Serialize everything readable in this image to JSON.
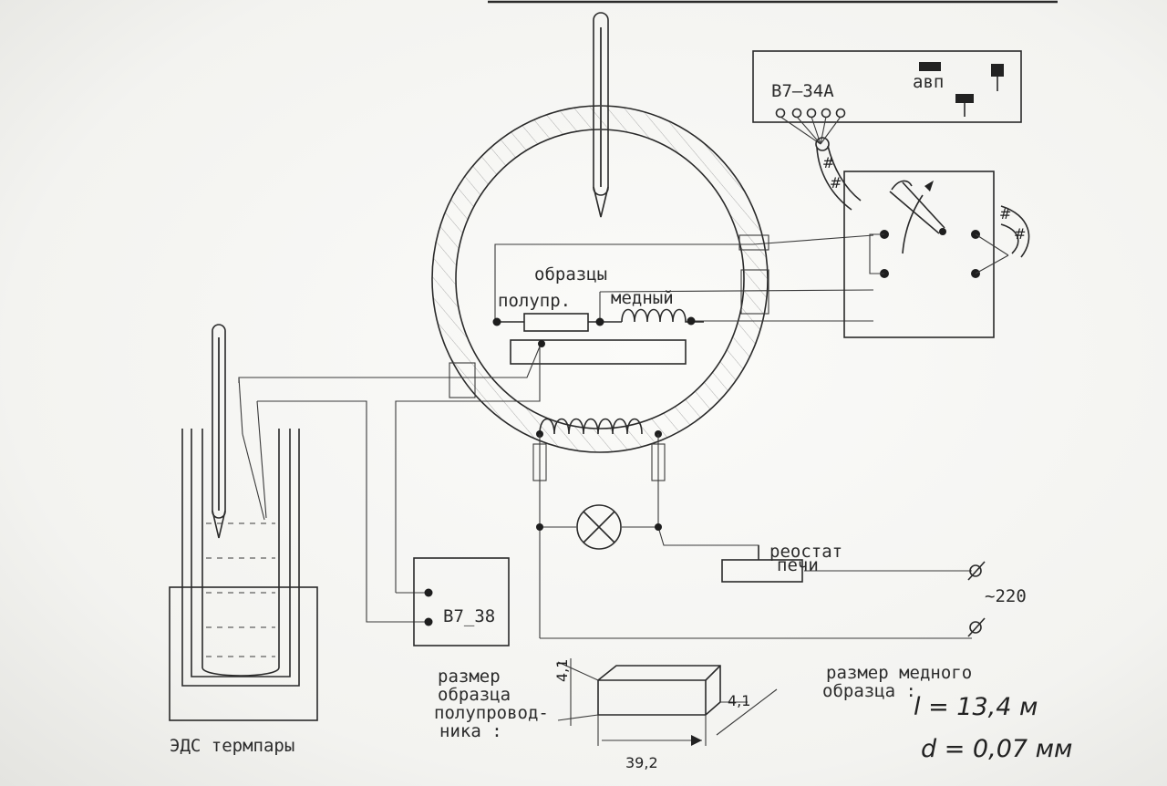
{
  "labels": {
    "samples_title": "образцы",
    "semiconductor": "полупр.",
    "copper": "медный",
    "voltmeter_top": "В7—34А",
    "avp": "авп",
    "voltmeter_small": "В7_38",
    "rheostat_line1": "реостат",
    "rheostat_line2": "печи",
    "mains": "~220",
    "sample_size_line1": "размер",
    "sample_size_line2": "образца",
    "sample_size_line3": "полупровод-",
    "sample_size_line4": "ника :",
    "copper_size_line1": "размер медного",
    "copper_size_line2": "образца :",
    "copper_length": "l = 13,4 м",
    "copper_diameter": "d = 0,07 мм",
    "thermocouple_emf": "ЭДС термпары",
    "dim_height": "4,1",
    "dim_width": "4,1",
    "dim_length": "39,2"
  }
}
